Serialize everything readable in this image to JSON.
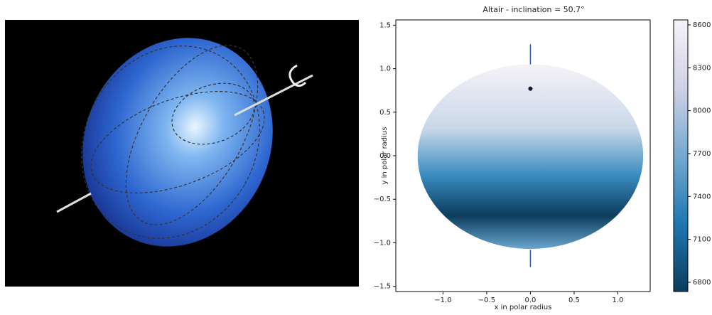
{
  "chart_data": {
    "type": "ellipsoid",
    "title": "Altair - inclination = 50.7°",
    "x_label": "x in polar radius",
    "y_label": "y in polar radius",
    "xlim": [
      -1.54,
      1.37
    ],
    "ylim": [
      -1.56,
      1.56
    ],
    "xticks": [
      {
        "value": -1,
        "label": "−1.0"
      },
      {
        "value": -0.5,
        "label": "−0.5"
      },
      {
        "value": 0,
        "label": "0.0"
      },
      0.5,
      {
        "value": 1,
        "label": "1.0"
      }
    ],
    "yticks": [
      {
        "value": -1.5,
        "label": "−1.5"
      },
      {
        "value": -1,
        "label": "−1.0"
      },
      {
        "value": -0.5,
        "label": "−0.5"
      },
      {
        "value": 0,
        "label": "0.0"
      },
      0.5,
      {
        "value": 1,
        "label": "1.0"
      },
      1.5
    ],
    "colorbar": {
      "clim": [
        6735,
        8635
      ],
      "ticks": [
        6800,
        7100,
        7400,
        7700,
        8000,
        8300,
        8600
      ],
      "colors": [
        "#0b3c5d",
        "#1f77b0",
        "#74a9cf",
        "#d0d1e6",
        "#f6f2f8"
      ]
    }
  }
}
